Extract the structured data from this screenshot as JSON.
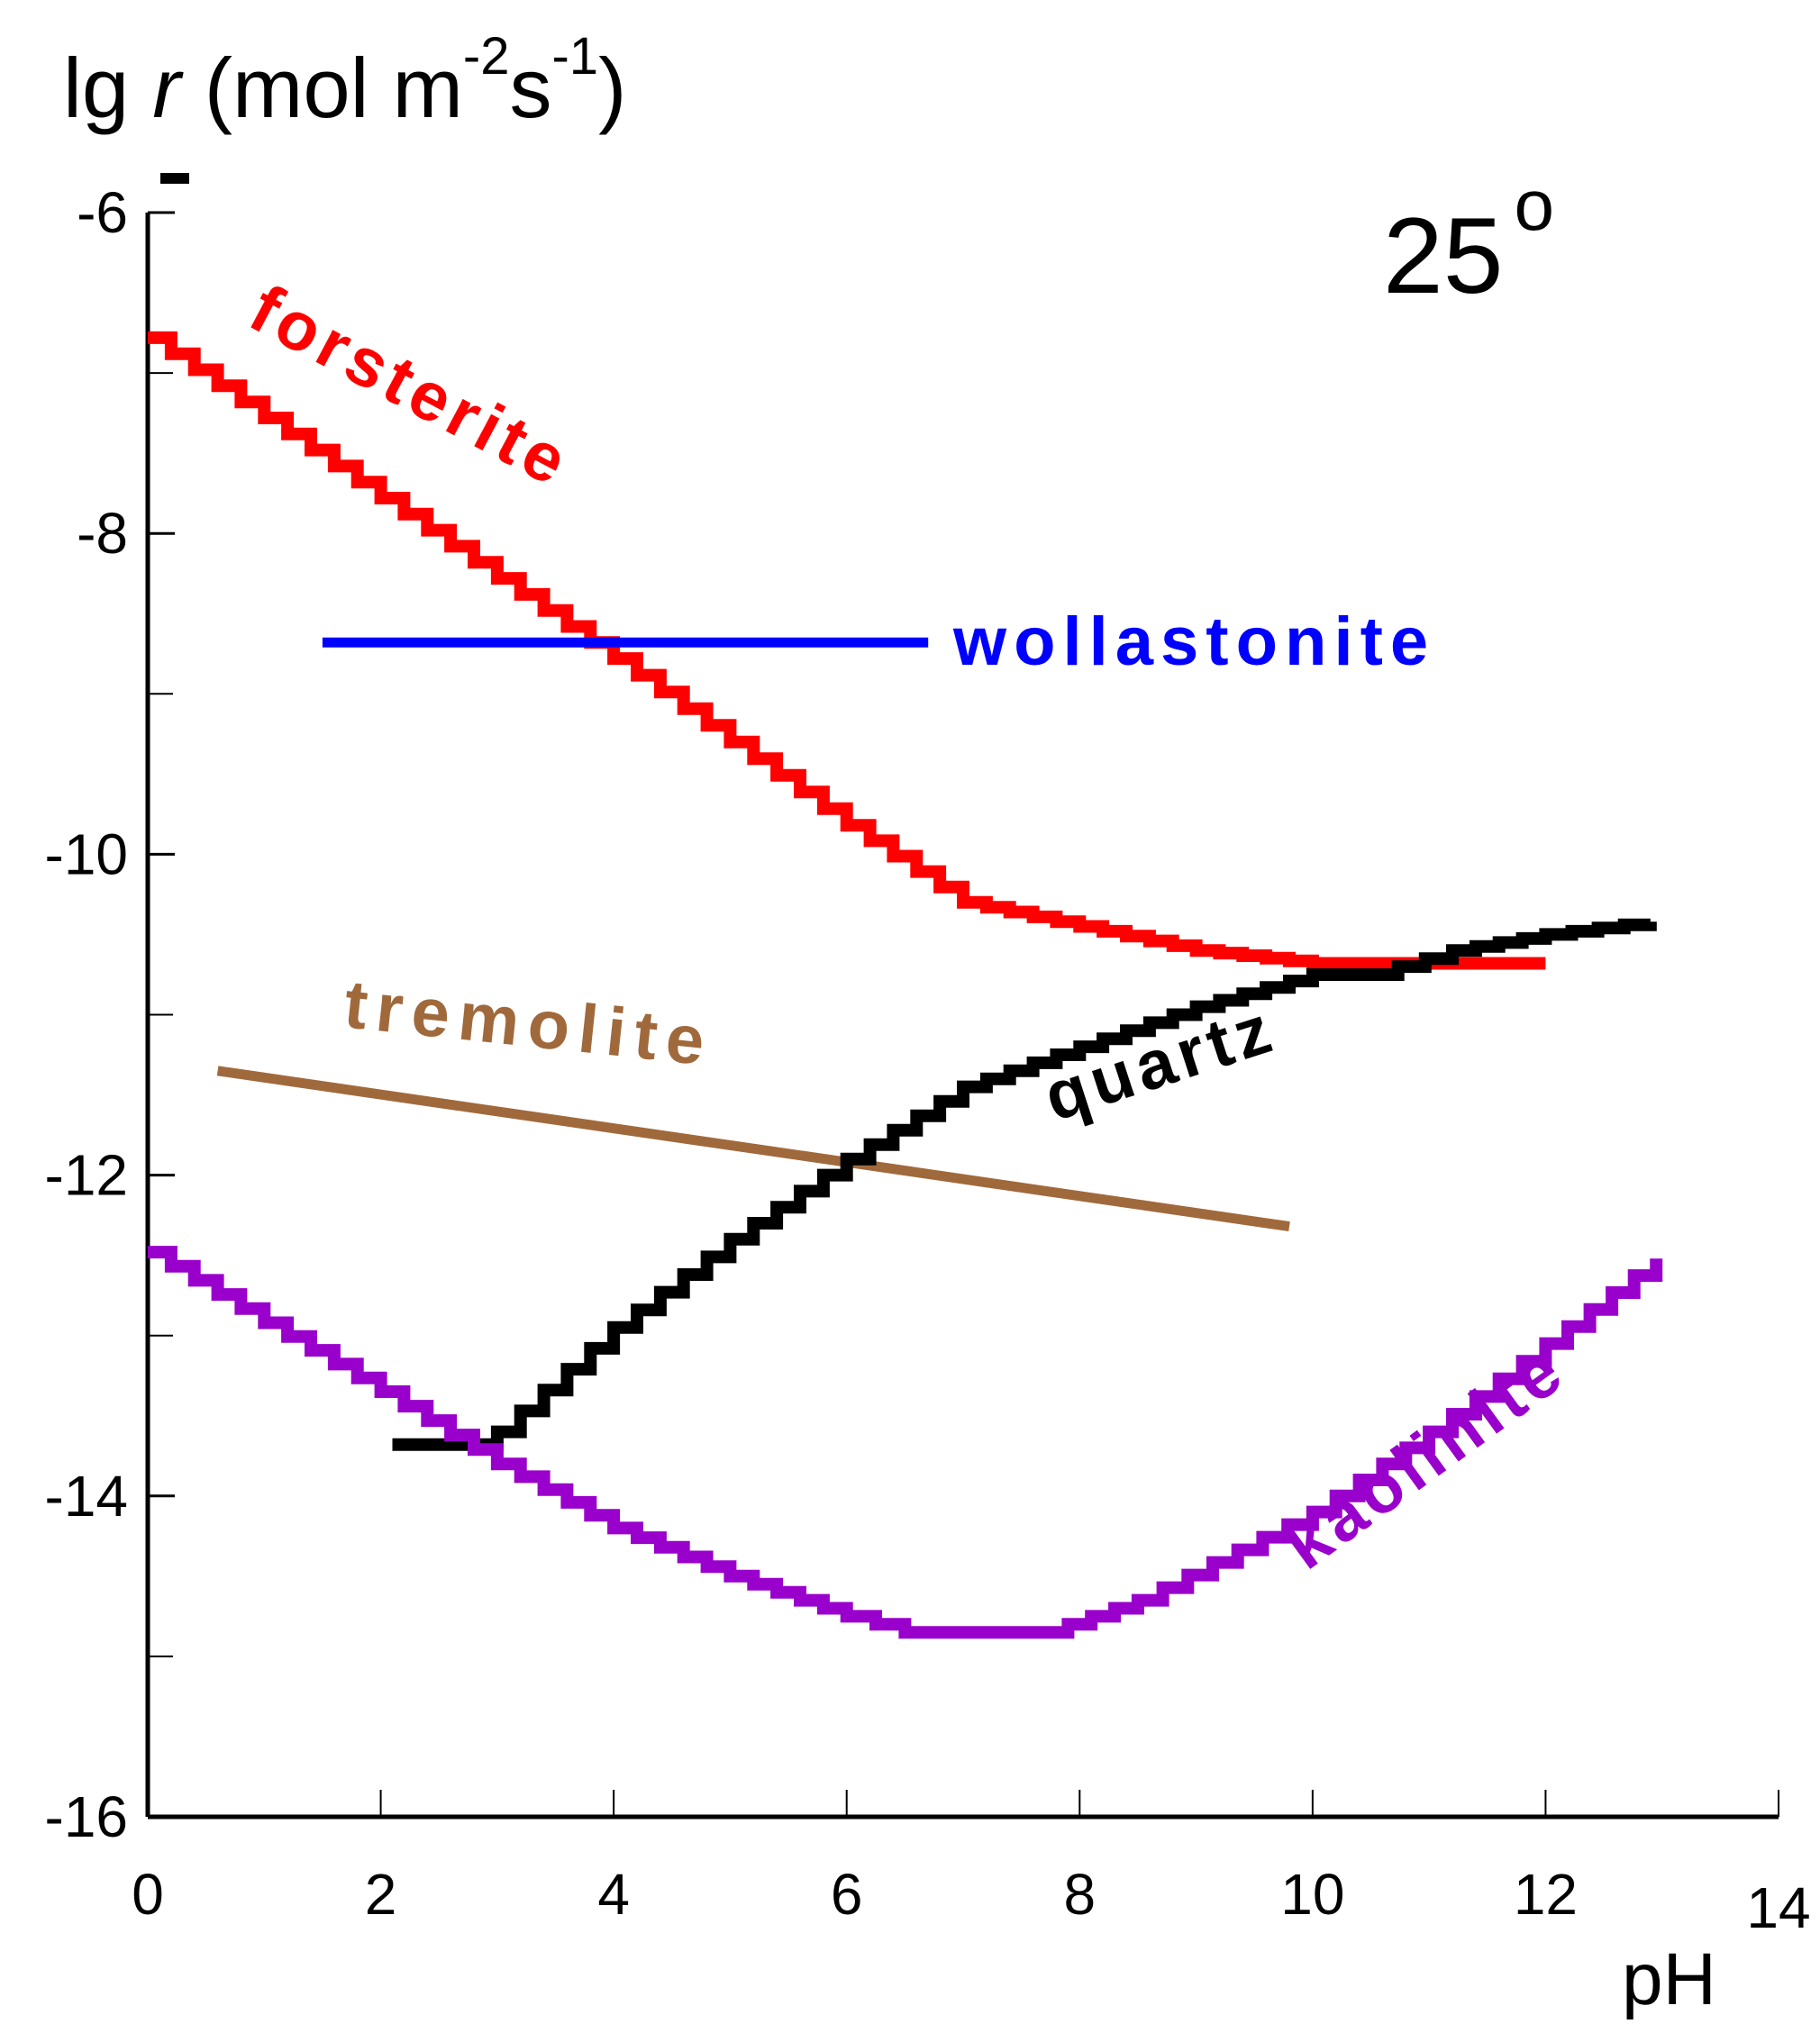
{
  "chart_data": {
    "type": "line",
    "ylabel": {
      "prefix": "lg ",
      "symbol": "r",
      "unit_open": " (mol m",
      "unit_exp1": "-2",
      "unit_mid": "s",
      "unit_exp2": "-1",
      "unit_close": ")"
    },
    "xlabel": "pH",
    "annotation": {
      "text": "25",
      "superscript": "o"
    },
    "xlim": [
      0,
      14
    ],
    "ylim": [
      -16,
      -6
    ],
    "xticks": [
      0,
      2,
      4,
      6,
      8,
      10,
      12,
      14
    ],
    "yticks": [
      -6,
      -8,
      -10,
      -12,
      -14,
      -16
    ],
    "grid": false,
    "series": [
      {
        "name": "forsterite",
        "color": "#ff0000",
        "stepped": true,
        "points": [
          [
            0,
            -6.78
          ],
          [
            1,
            -7.28
          ],
          [
            2,
            -7.78
          ],
          [
            3,
            -8.28
          ],
          [
            4,
            -8.78
          ],
          [
            5,
            -9.3
          ],
          [
            6,
            -9.82
          ],
          [
            7,
            -10.3
          ],
          [
            8,
            -10.45
          ],
          [
            9,
            -10.6
          ],
          [
            10,
            -10.68
          ],
          [
            12,
            -10.68
          ]
        ]
      },
      {
        "name": "wollastonite",
        "color": "#0000ff",
        "stepped": false,
        "points": [
          [
            1.5,
            -8.68
          ],
          [
            6.7,
            -8.68
          ]
        ]
      },
      {
        "name": "tremolite",
        "color": "#a0693c",
        "stepped": false,
        "points": [
          [
            0.6,
            -11.35
          ],
          [
            9.8,
            -12.32
          ]
        ]
      },
      {
        "name": "quartz",
        "color": "#000000",
        "stepped": true,
        "points": [
          [
            2.1,
            -13.68
          ],
          [
            2.8,
            -13.68
          ],
          [
            3.0,
            -13.6
          ],
          [
            4.0,
            -12.95
          ],
          [
            5.0,
            -12.4
          ],
          [
            6.0,
            -11.9
          ],
          [
            7.0,
            -11.45
          ],
          [
            8.0,
            -11.2
          ],
          [
            9.0,
            -10.95
          ],
          [
            10.0,
            -10.75
          ],
          [
            10.5,
            -10.75
          ],
          [
            11.2,
            -10.6
          ],
          [
            12.0,
            -10.5
          ],
          [
            12.9,
            -10.42
          ]
        ]
      },
      {
        "name": "kaolinite",
        "color": "#9900cc",
        "stepped": true,
        "points": [
          [
            0,
            -12.48
          ],
          [
            1,
            -12.92
          ],
          [
            2,
            -13.35
          ],
          [
            3,
            -13.8
          ],
          [
            4,
            -14.2
          ],
          [
            5,
            -14.5
          ],
          [
            6.0,
            -14.75
          ],
          [
            6.5,
            -14.85
          ],
          [
            7.7,
            -14.85
          ],
          [
            8.5,
            -14.65
          ],
          [
            10,
            -14.1
          ],
          [
            11,
            -13.6
          ],
          [
            12,
            -13.05
          ],
          [
            12.95,
            -12.52
          ]
        ]
      }
    ],
    "labels": {
      "forsterite": "forsterite",
      "wollastonite": "wollastonite",
      "tremolite": "tremolite",
      "quartz": "quartz",
      "kaolinite": "kaolinite"
    }
  }
}
